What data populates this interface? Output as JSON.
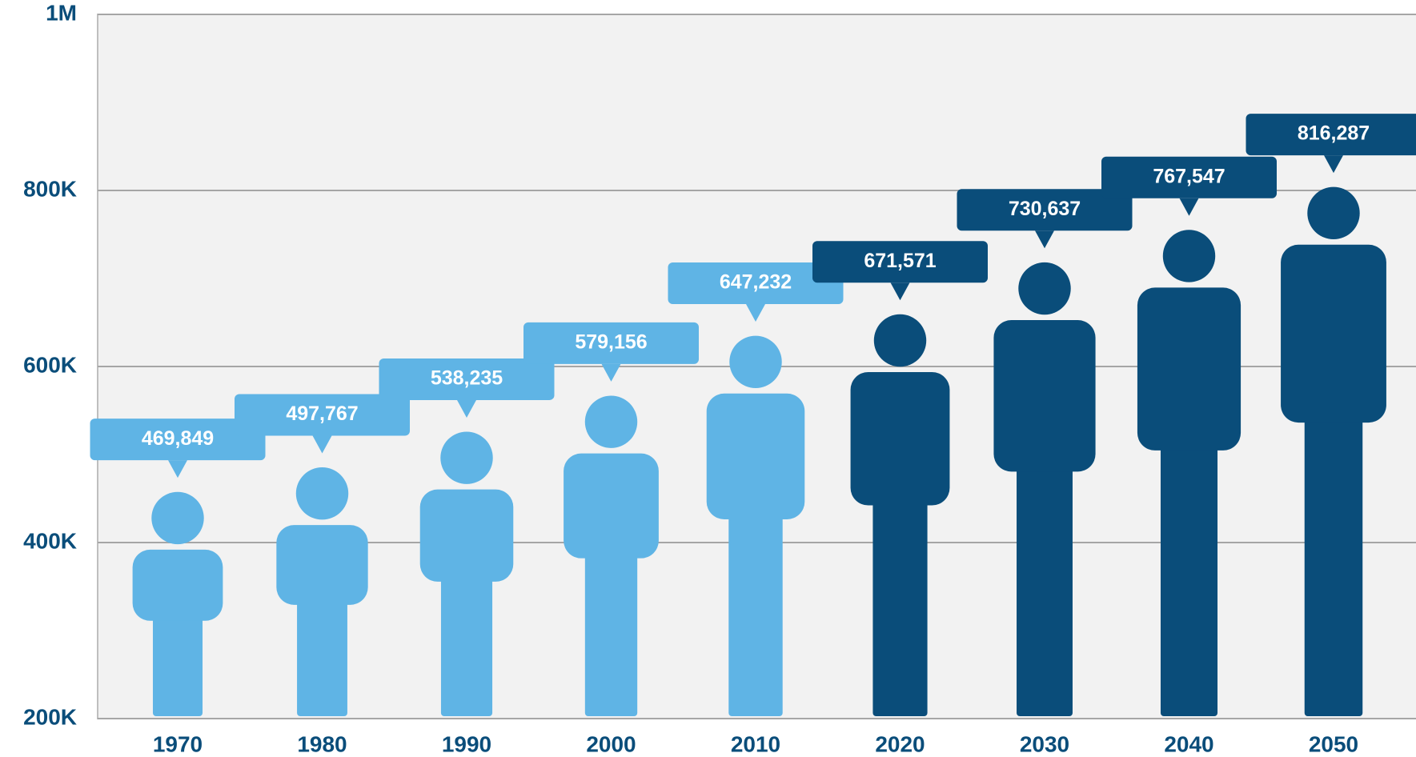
{
  "chart_data": {
    "type": "pictograph",
    "categories": [
      "1970",
      "1980",
      "1990",
      "2000",
      "2010",
      "2020",
      "2030",
      "2040",
      "2050"
    ],
    "values": [
      469849,
      497767,
      538235,
      579156,
      647232,
      671571,
      730637,
      767547,
      816287
    ],
    "value_labels": [
      "469,849",
      "497,767",
      "538,235",
      "579,156",
      "647,232",
      "671,571",
      "730,637",
      "767,547",
      "816,287"
    ],
    "colors": [
      "#5fb4e5",
      "#5fb4e5",
      "#5fb4e5",
      "#5fb4e5",
      "#5fb4e5",
      "#0a4d7a",
      "#0a4d7a",
      "#0a4d7a",
      "#0a4d7a"
    ],
    "ylim": [
      200000,
      1000000
    ],
    "yticks": [
      {
        "value": 200000,
        "label": "200K"
      },
      {
        "value": 400000,
        "label": "400K"
      },
      {
        "value": 600000,
        "label": "600K"
      },
      {
        "value": 800000,
        "label": "800K"
      },
      {
        "value": 1000000,
        "label": "1M"
      }
    ],
    "grid": true
  }
}
